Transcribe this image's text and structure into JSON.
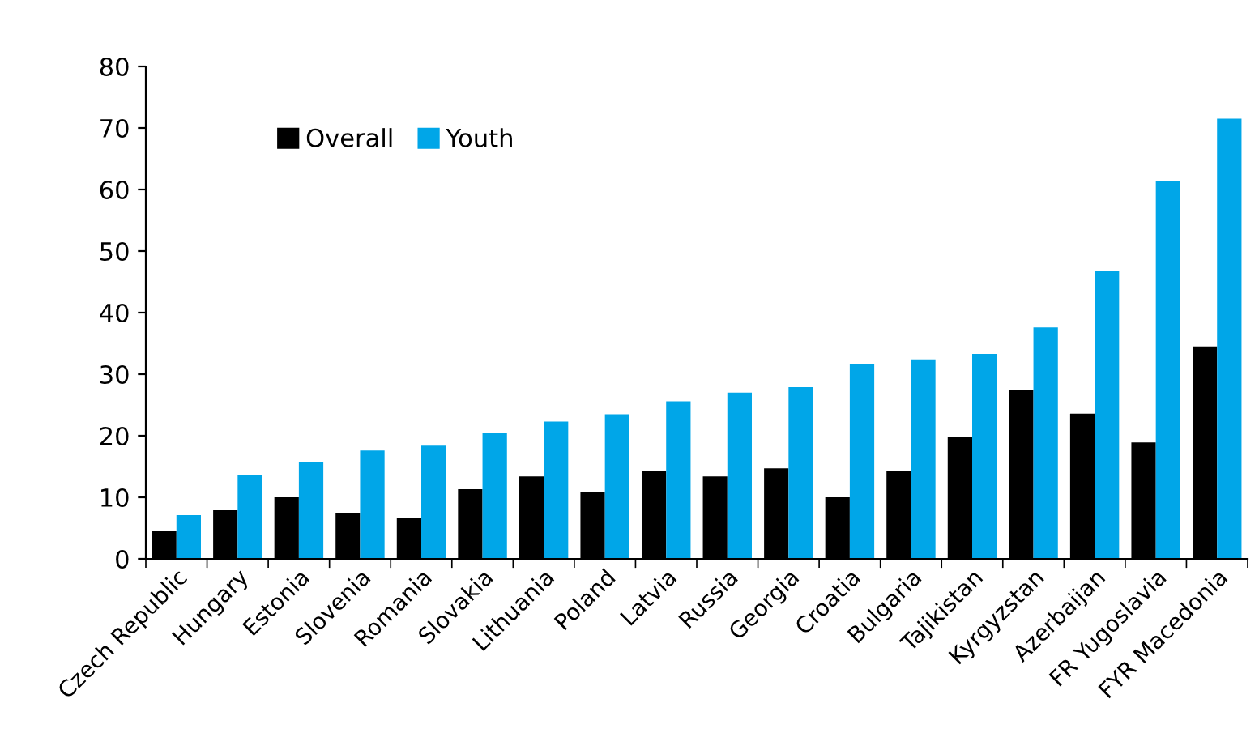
{
  "chart_data": {
    "type": "bar",
    "categories": [
      "Czech Republic",
      "Hungary",
      "Estonia",
      "Slovenia",
      "Romania",
      "Slovakia",
      "Lithuania",
      "Poland",
      "Latvia",
      "Russia",
      "Georgia",
      "Croatia",
      "Bulgaria",
      "Tajikistan",
      "Kyrgyzstan",
      "Azerbaijan",
      "FR Yugoslavia",
      "FYR Macedonia"
    ],
    "series": [
      {
        "name": "Overall",
        "color": "#000000",
        "values": [
          4.5,
          7.9,
          10.0,
          7.5,
          6.6,
          11.3,
          13.4,
          10.9,
          14.2,
          13.4,
          14.7,
          10.0,
          14.2,
          19.8,
          27.4,
          23.6,
          18.9,
          34.5
        ]
      },
      {
        "name": "Youth",
        "color": "#00a6e8",
        "values": [
          7.1,
          13.7,
          15.8,
          17.6,
          18.4,
          20.5,
          22.3,
          23.5,
          25.6,
          27.0,
          27.9,
          31.6,
          32.4,
          33.3,
          37.6,
          46.8,
          61.4,
          71.5
        ]
      }
    ],
    "ylim": [
      0,
      80
    ],
    "yticks": [
      0,
      10,
      20,
      30,
      40,
      50,
      60,
      70,
      80
    ],
    "grid": false,
    "legend": "top left"
  }
}
